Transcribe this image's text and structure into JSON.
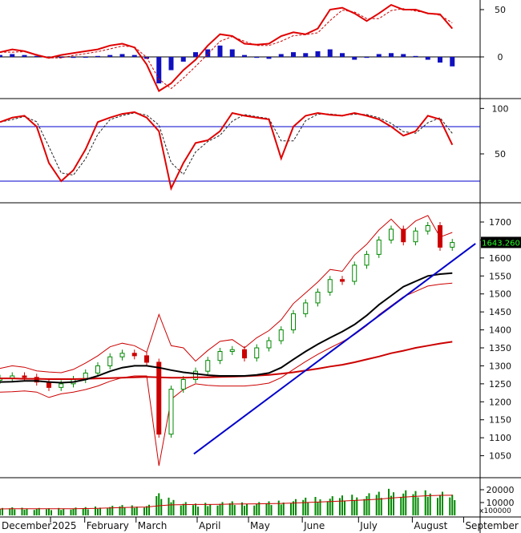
{
  "chart_data": [
    {
      "id": "macd",
      "type": "line",
      "y_ticks": [
        50,
        0
      ],
      "colors": {
        "line": "#e00000",
        "signal": "#cc0000",
        "histogram": "#1010c0",
        "zero": "#000000"
      },
      "series": [
        {
          "x": [
            0,
            5,
            10,
            15,
            20,
            25,
            30,
            35,
            40,
            45,
            50,
            55,
            60,
            65,
            70,
            75,
            80,
            85,
            90,
            95,
            100,
            105,
            110,
            115,
            120,
            125,
            130,
            135,
            140,
            145,
            150,
            155,
            160,
            165,
            170,
            175,
            180,
            185
          ],
          "values": [
            5,
            8,
            6,
            2,
            -1,
            2,
            4,
            6,
            8,
            12,
            14,
            10,
            -8,
            -36,
            -28,
            -14,
            -3,
            12,
            24,
            22,
            14,
            13,
            14,
            22,
            26,
            24,
            30,
            50,
            52,
            46,
            38,
            46,
            55,
            50,
            50,
            46,
            45,
            30
          ]
        }
      ],
      "histogram": [
        2,
        3,
        2,
        1,
        -1,
        -1,
        -1,
        0,
        1,
        2,
        3,
        2,
        -2,
        -28,
        -14,
        -5,
        5,
        8,
        12,
        8,
        2,
        -1,
        -2,
        3,
        5,
        4,
        6,
        8,
        4,
        -3,
        -1,
        3,
        4,
        3,
        1,
        -3,
        -6,
        -10
      ]
    },
    {
      "id": "stochastic",
      "type": "line",
      "y_ticks": [
        100,
        50
      ],
      "reference_lines": [
        80,
        20
      ],
      "colors": {
        "k": "#e00000",
        "d": "#222222",
        "reference": "#0000cc"
      },
      "series": [
        {
          "x": [
            0,
            5,
            10,
            15,
            20,
            25,
            30,
            35,
            40,
            45,
            50,
            55,
            60,
            65,
            70,
            75,
            80,
            85,
            90,
            95,
            100,
            105,
            110,
            115,
            120,
            125,
            130,
            135,
            140,
            145,
            150,
            155,
            160,
            165,
            170,
            175,
            180,
            185
          ],
          "values": [
            85,
            90,
            92,
            80,
            40,
            20,
            32,
            55,
            85,
            90,
            94,
            96,
            90,
            75,
            12,
            40,
            62,
            65,
            75,
            95,
            92,
            90,
            88,
            45,
            80,
            92,
            95,
            93,
            92,
            95,
            92,
            88,
            80,
            70,
            75,
            92,
            88,
            60
          ]
        }
      ]
    },
    {
      "id": "price",
      "type": "candlestick",
      "y_ticks": [
        1700,
        1650,
        1600,
        1550,
        1500,
        1450,
        1400,
        1350,
        1300,
        1250,
        1200,
        1150,
        1100,
        1050
      ],
      "last_price": "1643.260",
      "colors": {
        "up": "#008800",
        "down": "#cc0000",
        "ma_short": "#000000",
        "ma_long": "#cc0000",
        "bands": "#cc0000",
        "trend": "#0000cc",
        "last_price_bg": "#000000",
        "last_price_text": "#22ff22"
      },
      "x": [
        0,
        5,
        10,
        15,
        20,
        25,
        30,
        35,
        40,
        45,
        50,
        55,
        60,
        65,
        70,
        75,
        80,
        85,
        90,
        95,
        100,
        105,
        110,
        115,
        120,
        125,
        130,
        135,
        140,
        145,
        150,
        155,
        160,
        165,
        170,
        175,
        180,
        185
      ],
      "close": [
        1265,
        1272,
        1268,
        1255,
        1240,
        1250,
        1262,
        1280,
        1300,
        1325,
        1335,
        1328,
        1310,
        1110,
        1235,
        1262,
        1285,
        1315,
        1340,
        1345,
        1322,
        1350,
        1370,
        1400,
        1445,
        1475,
        1505,
        1540,
        1535,
        1580,
        1610,
        1650,
        1680,
        1645,
        1675,
        1690,
        1630,
        1643
      ],
      "ma_short": [
        1255,
        1256,
        1258,
        1258,
        1255,
        1253,
        1255,
        1262,
        1272,
        1285,
        1295,
        1300,
        1300,
        1295,
        1288,
        1282,
        1278,
        1274,
        1272,
        1272,
        1272,
        1275,
        1280,
        1295,
        1318,
        1340,
        1360,
        1378,
        1395,
        1415,
        1440,
        1470,
        1495,
        1520,
        1535,
        1550,
        1555,
        1558
      ],
      "ma_long": [
        1265,
        1265,
        1264,
        1264,
        1263,
        1263,
        1263,
        1264,
        1265,
        1266,
        1267,
        1268,
        1269,
        1268,
        1267,
        1267,
        1268,
        1268,
        1269,
        1270,
        1271,
        1273,
        1275,
        1278,
        1282,
        1287,
        1292,
        1298,
        1303,
        1310,
        1318,
        1326,
        1335,
        1342,
        1350,
        1356,
        1362,
        1367
      ],
      "trend_line": {
        "start": [
          87,
          1055
        ],
        "end": [
          212,
          1640
        ]
      }
    },
    {
      "id": "volume",
      "type": "bar",
      "unit_label": "x100000",
      "y_ticks": [
        20000,
        10000
      ],
      "colors": {
        "bar": "#008800",
        "average": "#cc0000"
      },
      "x": [
        0,
        5,
        10,
        15,
        20,
        25,
        30,
        35,
        40,
        45,
        50,
        55,
        60,
        65,
        70,
        75,
        80,
        85,
        90,
        95,
        100,
        105,
        110,
        115,
        120,
        125,
        130,
        135,
        140,
        145,
        150,
        155,
        160,
        165,
        170,
        175,
        180,
        185
      ],
      "values": [
        5000,
        5500,
        5200,
        5000,
        4800,
        5000,
        5300,
        5600,
        6000,
        6500,
        7000,
        6800,
        7200,
        15000,
        12000,
        9000,
        8000,
        8500,
        9000,
        9500,
        8800,
        9000,
        9500,
        10000,
        11000,
        12000,
        12500,
        13000,
        13500,
        14000,
        15000,
        16000,
        18000,
        17000,
        16500,
        17000,
        16000,
        14000
      ],
      "average": [
        5000,
        5100,
        5200,
        5200,
        5100,
        5100,
        5200,
        5300,
        5500,
        5800,
        6100,
        6300,
        6500,
        7500,
        8200,
        8400,
        8500,
        8500,
        8600,
        8800,
        8900,
        9000,
        9100,
        9300,
        9600,
        10000,
        10400,
        10800,
        11200,
        11600,
        12100,
        12700,
        13500,
        14200,
        14800,
        15300,
        15600,
        15700
      ]
    }
  ],
  "x_axis": {
    "labels": [
      "December",
      "2025",
      "February",
      "March",
      "April",
      "May",
      "June",
      "July",
      "August",
      "September"
    ],
    "positions": [
      -8,
      20,
      34,
      55,
      80,
      101,
      123,
      146,
      168,
      189
    ]
  }
}
